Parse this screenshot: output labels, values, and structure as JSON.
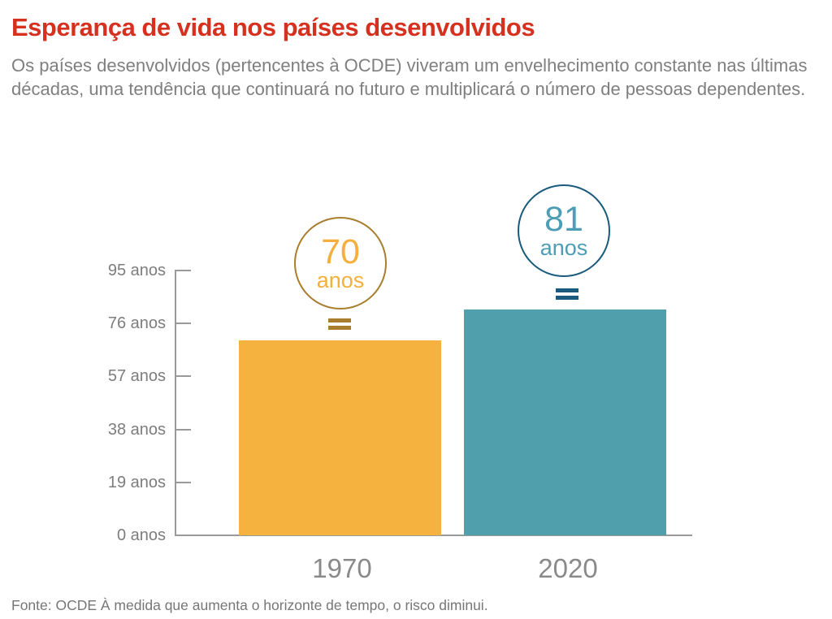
{
  "header": {
    "title": "Esperança de vida nos países desenvolvidos",
    "subtitle": "Os países desenvolvidos (pertencentes à OCDE) viveram um envelhecimento constante nas últimas décadas, uma tendência que continuará no futuro e multiplicará o número de pessoas dependentes."
  },
  "footer": {
    "source": "Fonte: OCDE À medida que aumenta o horizonte de tempo, o risco diminui."
  },
  "chart_data": {
    "type": "bar",
    "title": "Esperança de vida nos países desenvolvidos",
    "categories": [
      "1970",
      "2020"
    ],
    "values": [
      70,
      81
    ],
    "unit": "anos",
    "xlabel": "",
    "ylabel": "",
    "ylim": [
      0,
      95
    ],
    "ytick_labels": [
      "95 anos",
      "76 anos",
      "57 anos",
      "38 anos",
      "19 anos",
      "0 anos"
    ],
    "ytick_values": [
      95,
      76,
      57,
      38,
      19,
      0
    ],
    "grid": false,
    "legend": false,
    "annotations": [
      {
        "value": "70",
        "unit": "anos",
        "category": "1970"
      },
      {
        "value": "81",
        "unit": "anos",
        "category": "2020"
      }
    ],
    "colors": {
      "title": "#D6301F",
      "subtitle_text": "#7F7F7F",
      "axis": "#9A9A9A",
      "ytick_text": "#7D7D7D",
      "xlabel_text": "#8A8A8A",
      "source_text": "#767676",
      "bar_1970": "#F5B23E",
      "bar_2020": "#4F9FAD",
      "annotation_1970_stroke": "#A87E2E",
      "annotation_1970_text": "#F6AF3D",
      "annotation_2020_stroke": "#1A5A7D",
      "annotation_2020_text": "#4C9DB5"
    }
  }
}
